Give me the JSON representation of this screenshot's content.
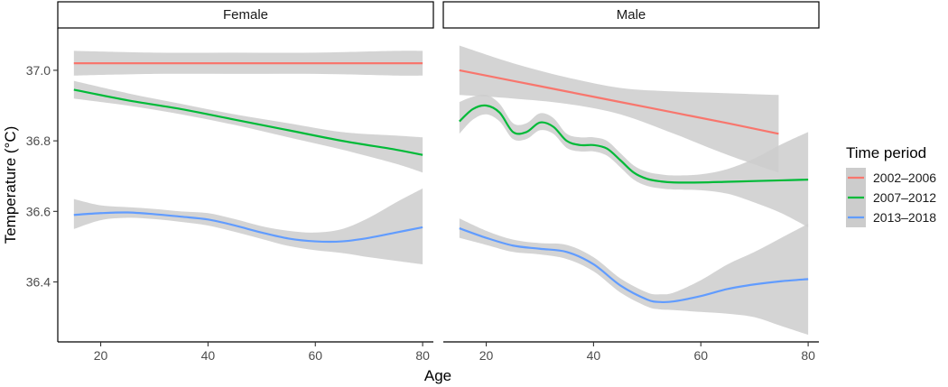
{
  "chart_data": {
    "type": "line",
    "xlabel": "Age",
    "ylabel": "Temperature (°C)",
    "xlim": [
      12,
      82
    ],
    "ylim": [
      36.23,
      37.12
    ],
    "x_ticks": [
      20,
      40,
      60,
      80
    ],
    "x_tick_labels": [
      "20",
      "40",
      "60",
      "80"
    ],
    "y_ticks": [
      36.4,
      36.6,
      36.8,
      37.0
    ],
    "y_tick_labels": [
      "36.4",
      "36.6",
      "36.8",
      "37.0"
    ],
    "legend": {
      "title": "Time period",
      "position": "right",
      "labels": [
        "2002–2006",
        "2007–2012",
        "2013–2018"
      ]
    },
    "colors": {
      "2002–2006": "#F8766D",
      "2007–2012": "#00BA38",
      "2013–2018": "#619CFF",
      "band": "#cccccc"
    },
    "panels": [
      {
        "label": "Female",
        "series": [
          {
            "name": "2002–2006",
            "x": [
              15,
              30,
              45,
              60,
              75,
              80
            ],
            "y": [
              37.02,
              37.02,
              37.02,
              37.02,
              37.02,
              37.02
            ],
            "lower": [
              36.985,
              36.99,
              36.99,
              36.99,
              36.985,
              36.985
            ],
            "upper": [
              37.055,
              37.05,
              37.05,
              37.05,
              37.055,
              37.055
            ]
          },
          {
            "name": "2007–2012",
            "x": [
              15,
              25,
              35,
              45,
              55,
              65,
              75,
              80
            ],
            "y": [
              36.945,
              36.915,
              36.89,
              36.86,
              36.83,
              36.8,
              36.775,
              36.76
            ],
            "lower": [
              36.92,
              36.9,
              36.875,
              36.845,
              36.81,
              36.775,
              36.735,
              36.71
            ],
            "upper": [
              36.97,
              36.935,
              36.905,
              36.875,
              36.85,
              36.825,
              36.815,
              36.81
            ]
          },
          {
            "name": "2013–2018",
            "x": [
              15,
              20,
              25,
              30,
              35,
              40,
              45,
              50,
              55,
              60,
              65,
              70,
              75,
              80
            ],
            "y": [
              36.59,
              36.595,
              36.597,
              36.592,
              36.585,
              36.577,
              36.56,
              36.54,
              36.523,
              36.515,
              36.515,
              36.525,
              36.54,
              36.555
            ],
            "lower": [
              36.55,
              36.575,
              36.582,
              36.578,
              36.57,
              36.56,
              36.542,
              36.522,
              36.502,
              36.49,
              36.482,
              36.47,
              36.46,
              36.45
            ],
            "upper": [
              36.635,
              36.617,
              36.612,
              36.607,
              36.6,
              36.595,
              36.578,
              36.558,
              36.545,
              36.54,
              36.55,
              36.582,
              36.625,
              36.665
            ]
          }
        ]
      },
      {
        "label": "Male",
        "series": [
          {
            "name": "2002–2006",
            "x": [
              15,
              25,
              35,
              45,
              55,
              65,
              74.5
            ],
            "y": [
              37.0,
              36.97,
              36.94,
              36.91,
              36.88,
              36.85,
              36.82
            ],
            "lower": [
              36.93,
              36.92,
              36.905,
              36.875,
              36.82,
              36.76,
              36.71
            ],
            "upper": [
              37.07,
              37.02,
              36.98,
              36.95,
              36.94,
              36.935,
              36.93
            ]
          },
          {
            "name": "2007–2012",
            "x": [
              15,
              17.5,
              20,
              22.5,
              25,
              27.5,
              30,
              32.5,
              35,
              37.5,
              40,
              42.5,
              45,
              47.5,
              50,
              52.5,
              55,
              60,
              65,
              70,
              75,
              80
            ],
            "y": [
              36.855,
              36.89,
              36.9,
              36.88,
              36.825,
              36.825,
              36.852,
              36.84,
              36.8,
              36.788,
              36.788,
              36.778,
              36.745,
              36.71,
              36.692,
              36.685,
              36.682,
              36.682,
              36.684,
              36.686,
              36.688,
              36.69
            ],
            "lower": [
              36.82,
              36.86,
              36.875,
              36.855,
              36.805,
              36.805,
              36.83,
              36.82,
              36.78,
              36.77,
              36.77,
              36.758,
              36.725,
              36.69,
              36.672,
              36.665,
              36.662,
              36.66,
              36.65,
              36.625,
              36.595,
              36.555
            ],
            "upper": [
              36.91,
              36.925,
              36.93,
              36.905,
              36.85,
              36.85,
              36.878,
              36.865,
              36.82,
              36.81,
              36.81,
              36.8,
              36.765,
              36.73,
              36.712,
              36.705,
              36.702,
              36.705,
              36.72,
              36.75,
              36.79,
              36.825
            ]
          },
          {
            "name": "2013–2018",
            "x": [
              15,
              20,
              25,
              30,
              35,
              40,
              45,
              50,
              52.5,
              55,
              60,
              65,
              70,
              75,
              80
            ],
            "y": [
              36.552,
              36.525,
              36.503,
              36.494,
              36.485,
              36.45,
              36.39,
              36.35,
              36.343,
              36.345,
              36.36,
              36.38,
              36.393,
              36.402,
              36.408
            ],
            "lower": [
              36.525,
              36.505,
              36.485,
              36.478,
              36.465,
              36.43,
              36.37,
              36.33,
              36.322,
              36.32,
              36.315,
              36.31,
              36.3,
              36.275,
              36.25
            ],
            "upper": [
              36.58,
              36.545,
              36.52,
              36.51,
              36.505,
              36.47,
              36.41,
              36.37,
              36.365,
              36.37,
              36.405,
              36.45,
              36.485,
              36.525,
              36.565
            ]
          }
        ]
      }
    ]
  }
}
